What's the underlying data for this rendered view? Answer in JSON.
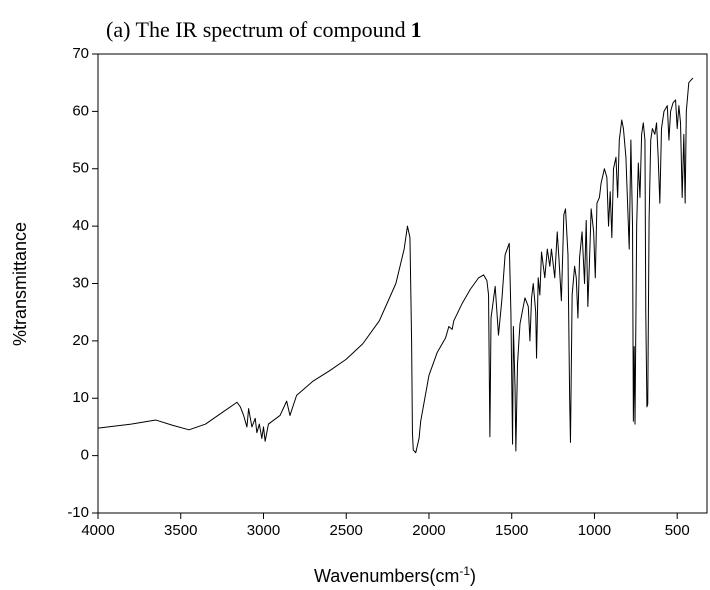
{
  "chart_data": {
    "type": "line",
    "title": [
      "(a) The IR spectrum of compound",
      "1"
    ],
    "xlabel": [
      "Wavenumbers(cm",
      "-1",
      ")"
    ],
    "ylabel": "%transmittance",
    "color": "#000000",
    "xlim": [
      4000,
      320
    ],
    "xticks": [
      4000,
      3500,
      3000,
      2500,
      2000,
      1500,
      1000,
      500
    ],
    "ylim": [
      -10,
      70
    ],
    "yticks": [
      -10,
      0,
      10,
      20,
      30,
      40,
      50,
      60,
      70
    ],
    "x": [
      4000,
      3800,
      3650,
      3550,
      3450,
      3350,
      3250,
      3160,
      3140,
      3120,
      3100,
      3090,
      3070,
      3050,
      3040,
      3025,
      3010,
      3000,
      2990,
      2970,
      2900,
      2860,
      2840,
      2800,
      2700,
      2600,
      2500,
      2400,
      2300,
      2200,
      2150,
      2130,
      2115,
      2105,
      2100,
      2095,
      2080,
      2060,
      2050,
      2000,
      1950,
      1900,
      1880,
      1860,
      1850,
      1800,
      1750,
      1700,
      1670,
      1650,
      1640,
      1632,
      1625,
      1600,
      1580,
      1560,
      1540,
      1515,
      1505,
      1495,
      1490,
      1480,
      1475,
      1465,
      1450,
      1420,
      1400,
      1390,
      1380,
      1370,
      1355,
      1350,
      1340,
      1330,
      1320,
      1300,
      1285,
      1270,
      1260,
      1240,
      1225,
      1215,
      1200,
      1185,
      1175,
      1160,
      1150,
      1145,
      1135,
      1120,
      1110,
      1100,
      1090,
      1075,
      1060,
      1050,
      1040,
      1030,
      1020,
      1005,
      995,
      985,
      970,
      960,
      940,
      925,
      915,
      905,
      895,
      885,
      870,
      860,
      850,
      835,
      825,
      810,
      800,
      790,
      780,
      770,
      765,
      760,
      755,
      745,
      735,
      725,
      715,
      705,
      695,
      690,
      683,
      678,
      670,
      660,
      650,
      635,
      625,
      615,
      605,
      595,
      580,
      560,
      550,
      540,
      525,
      510,
      500,
      490,
      480,
      470,
      460,
      452,
      445,
      430,
      415,
      405
    ],
    "values": [
      4.8,
      5.5,
      6.2,
      5.3,
      4.5,
      5.5,
      7.5,
      9.3,
      8.5,
      7.0,
      5.0,
      8.2,
      5.0,
      6.5,
      4.0,
      5.5,
      3.0,
      5.0,
      2.5,
      5.5,
      7.0,
      9.5,
      7.0,
      10.5,
      13.0,
      14.8,
      16.8,
      19.5,
      23.5,
      30.0,
      36.0,
      40.0,
      38.0,
      20.0,
      4.0,
      1.0,
      0.5,
      3.0,
      6.0,
      14.0,
      18.0,
      20.5,
      22.5,
      22.0,
      23.5,
      26.5,
      29.0,
      31.0,
      31.5,
      30.5,
      28.0,
      3.3,
      24.0,
      29.5,
      21.0,
      27.0,
      35.0,
      37.0,
      25.0,
      2.0,
      22.5,
      12.0,
      0.8,
      16.0,
      23.0,
      27.5,
      26.0,
      20.0,
      27.5,
      30.0,
      25.0,
      17.0,
      31.0,
      28.0,
      35.5,
      31.0,
      36.0,
      33.0,
      36.0,
      31.0,
      39.0,
      34.5,
      27.0,
      42.0,
      43.0,
      35.0,
      10.0,
      2.3,
      28.0,
      33.0,
      31.0,
      24.0,
      34.5,
      39.0,
      30.0,
      41.0,
      26.0,
      34.0,
      43.0,
      39.0,
      31.0,
      44.0,
      45.0,
      47.5,
      50.0,
      48.5,
      40.0,
      46.0,
      38.0,
      50.0,
      52.0,
      45.0,
      55.0,
      58.5,
      57.0,
      52.0,
      44.0,
      36.0,
      55.0,
      40.0,
      6.0,
      19.0,
      5.5,
      40.0,
      51.0,
      45.0,
      56.0,
      58.0,
      55.0,
      25.0,
      8.5,
      9.0,
      41.0,
      55.0,
      57.0,
      56.0,
      58.0,
      52.0,
      44.0,
      57.0,
      60.0,
      61.0,
      55.0,
      60.0,
      61.5,
      62.0,
      57.0,
      61.0,
      58.0,
      45.0,
      56.0,
      44.0,
      60.0,
      65.0,
      65.5,
      65.8
    ]
  }
}
